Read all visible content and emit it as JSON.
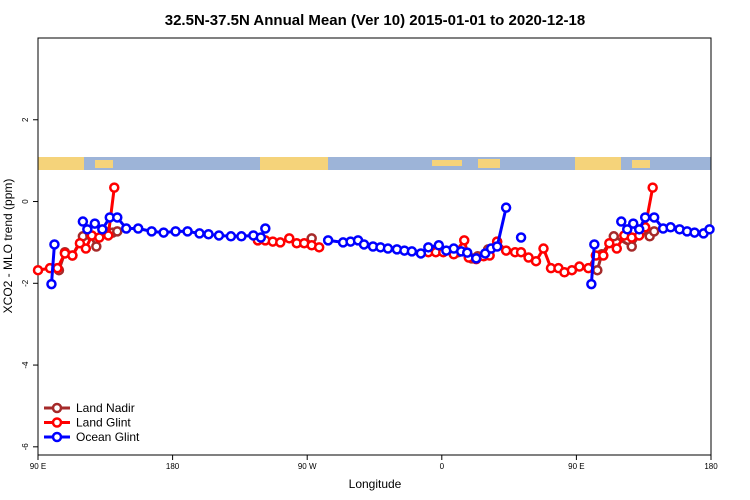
{
  "chart_data": {
    "type": "line",
    "title": "32.5N-37.5N Annual Mean (Ver 10)   2015-01-01 to 2020-12-18",
    "x_label": "Longitude",
    "y_label": "XCO2 - MLO trend (ppm)",
    "xlim": [
      90,
      540
    ],
    "ylim": [
      -6.2,
      4
    ],
    "xticks": [
      {
        "value": 90,
        "label": "90 E"
      },
      180,
      {
        "value": 270,
        "label": "90 W"
      },
      {
        "value": 360,
        "label": "0"
      },
      {
        "value": 450,
        "label": "90 E"
      },
      {
        "value": 540,
        "label": "180"
      }
    ],
    "yticks": [
      -6,
      -4,
      -2,
      0,
      2
    ],
    "legend": "bottom-left",
    "series": [
      {
        "name": "Land Nadir",
        "color": "#a52a2a",
        "x": [
          104,
          108,
          113,
          120,
          125,
          129,
          134,
          140,
          143,
          null,
          273,
          null,
          371,
          380,
          384,
          391,
          397,
          null,
          464,
          467,
          475,
          487,
          494,
          499,
          502
        ],
        "values": [
          -1.68,
          -1.24,
          -1.32,
          -0.85,
          -0.83,
          -1.1,
          -0.71,
          -0.76,
          -0.73,
          null,
          -0.9,
          null,
          -1.24,
          -1.39,
          -1.34,
          -1.17,
          -0.98,
          null,
          -1.68,
          -1.29,
          -0.85,
          -1.1,
          -0.71,
          -0.85,
          -0.73
        ]
      },
      {
        "name": "Land Glint",
        "color": "#ff0000",
        "x": [
          90,
          98,
          103,
          108,
          113,
          118,
          122,
          126,
          131,
          137,
          141,
          null,
          237,
          242,
          247,
          252,
          258,
          263,
          268,
          273,
          278,
          null,
          351,
          356,
          361,
          368,
          375,
          378,
          383,
          388,
          392,
          397,
          403,
          409,
          413,
          418,
          423,
          428,
          433,
          438,
          442,
          447,
          452,
          458,
          463,
          468,
          472,
          477,
          482,
          487,
          492,
          496,
          501
        ],
        "values": [
          -1.68,
          -1.63,
          -1.63,
          -1.27,
          -1.32,
          -1.02,
          -1.15,
          -0.83,
          -0.88,
          -0.83,
          0.34,
          null,
          -0.95,
          -0.95,
          -0.98,
          -1.0,
          -0.9,
          -1.02,
          -1.02,
          -1.07,
          -1.12,
          null,
          -1.24,
          -1.24,
          -1.24,
          -1.29,
          -0.95,
          -1.37,
          -1.41,
          -1.34,
          -1.32,
          -0.98,
          -1.2,
          -1.24,
          -1.24,
          -1.37,
          -1.46,
          -1.15,
          -1.63,
          -1.63,
          -1.73,
          -1.68,
          -1.59,
          -1.63,
          -1.32,
          -1.32,
          -1.02,
          -1.15,
          -0.83,
          -0.88,
          -0.83,
          -0.63,
          0.34
        ]
      },
      {
        "name": "Ocean Glint",
        "color": "#0000ff",
        "x": [
          99,
          101,
          null,
          120,
          123,
          128,
          133,
          138,
          143,
          149,
          157,
          166,
          174,
          182,
          190,
          198,
          204,
          211,
          219,
          226,
          234,
          239,
          242,
          null,
          284,
          294,
          299,
          304,
          308,
          314,
          319,
          324,
          330,
          335,
          340,
          346,
          351,
          358,
          363,
          368,
          373,
          377,
          383,
          389,
          393,
          397,
          403,
          null,
          413,
          null,
          460,
          462,
          null,
          480,
          484,
          488,
          492,
          496,
          502,
          508,
          513,
          519,
          524,
          529,
          535,
          539
        ],
        "values": [
          -2.02,
          -1.05,
          null,
          -0.49,
          -0.68,
          -0.54,
          -0.68,
          -0.39,
          -0.39,
          -0.66,
          -0.66,
          -0.73,
          -0.76,
          -0.73,
          -0.73,
          -0.78,
          -0.8,
          -0.83,
          -0.85,
          -0.85,
          -0.83,
          -0.88,
          -0.66,
          null,
          -0.95,
          -1.0,
          -0.98,
          -0.95,
          -1.05,
          -1.1,
          -1.12,
          -1.15,
          -1.17,
          -1.2,
          -1.22,
          -1.27,
          -1.12,
          -1.07,
          -1.2,
          -1.15,
          -1.22,
          -1.25,
          -1.39,
          -1.27,
          -1.15,
          -1.1,
          -0.15,
          null,
          -0.88,
          null,
          -2.02,
          -1.05,
          null,
          -0.49,
          -0.68,
          -0.54,
          -0.68,
          -0.39,
          -0.39,
          -0.66,
          -0.63,
          -0.68,
          -0.73,
          -0.76,
          -0.78,
          -0.68
        ]
      }
    ]
  }
}
